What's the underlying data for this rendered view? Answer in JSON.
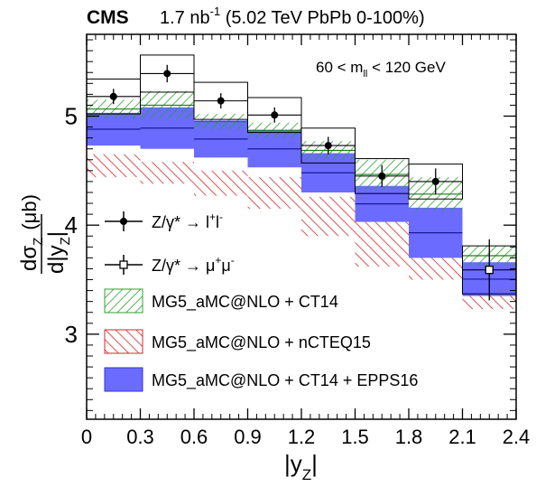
{
  "header": {
    "experiment": "CMS",
    "lumi_value": "1.7 nb",
    "lumi_exp": "-1",
    "lumi_rest": " (5.02 TeV PbPb 0-100%)"
  },
  "annotation": {
    "main": "60 < m",
    "sub": "ll",
    "tail": " < 120 GeV"
  },
  "axes": {
    "x_label_main": "|y",
    "x_label_sub": "Z",
    "x_label_tail": "|",
    "y_num_main": "dσ",
    "y_num_sub": "Z",
    "y_unit": "(μb)",
    "y_den_main": "d|y",
    "y_den_sub": "Z",
    "y_den_tail": "|"
  },
  "legend": {
    "data_ll": {
      "main": "Z/γ* → l",
      "sup1": "+",
      "mid": "l",
      "sup2": "-"
    },
    "data_mumu": {
      "main": "Z/γ* → μ",
      "sup1": "+",
      "mid": "μ",
      "sup2": "-"
    },
    "ct14": "MG5_aMC@NLO + CT14",
    "ncteq15": "MG5_aMC@NLO + nCTEQ15",
    "epps16": "MG5_aMC@NLO + CT14 + EPPS16"
  },
  "colors": {
    "ct14": "#2ca02c",
    "ncteq15": "#d62728",
    "epps16": "#6b6bff",
    "data": "#000000"
  },
  "chart_data": {
    "type": "bar",
    "x_edges": [
      0,
      0.3,
      0.6,
      0.9,
      1.2,
      1.5,
      1.8,
      2.1,
      2.4
    ],
    "x_ticks": [
      0,
      0.3,
      0.6,
      0.9,
      1.2,
      1.5,
      1.8,
      2.1,
      2.4
    ],
    "x_tick_labels": [
      "0",
      "0.3",
      "0.6",
      "0.9",
      "1.2",
      "1.5",
      "1.8",
      "2.1",
      "2.4"
    ],
    "y_ticks": [
      3,
      4,
      5
    ],
    "y_tick_labels": [
      "3",
      "4",
      "5"
    ],
    "xlim": [
      0,
      2.4
    ],
    "ylim": [
      2.22,
      5.75
    ],
    "data_ll": {
      "x": [
        0.15,
        0.45,
        0.75,
        1.05,
        1.35,
        1.65,
        1.95
      ],
      "y": [
        5.18,
        5.39,
        5.14,
        5.01,
        4.73,
        4.45,
        4.4
      ],
      "stat": [
        0.07,
        0.08,
        0.07,
        0.07,
        0.08,
        0.1,
        0.12
      ],
      "syst": [
        0.16,
        0.17,
        0.17,
        0.16,
        0.16,
        0.16,
        0.16
      ]
    },
    "data_mumu": {
      "x": [
        2.25
      ],
      "y": [
        3.59
      ],
      "stat": [
        0.28
      ],
      "syst": [
        0.22
      ]
    },
    "ct14": {
      "low": [
        4.98,
        4.97,
        4.88,
        4.8,
        4.6,
        4.33,
        4.13,
        3.63
      ],
      "high": [
        5.15,
        5.23,
        5.02,
        4.94,
        4.77,
        4.6,
        4.44,
        3.81
      ]
    },
    "epps16": {
      "low": [
        4.73,
        4.7,
        4.62,
        4.53,
        4.3,
        4.03,
        3.7,
        3.35
      ],
      "high": [
        5.03,
        5.08,
        4.96,
        4.87,
        4.66,
        4.36,
        4.16,
        3.66
      ]
    },
    "ncteq15": {
      "low": [
        4.44,
        4.38,
        4.27,
        4.15,
        3.9,
        3.62,
        3.5,
        3.23
      ],
      "high": [
        4.65,
        4.58,
        4.5,
        4.44,
        4.26,
        4.03,
        3.85,
        3.5
      ]
    }
  }
}
